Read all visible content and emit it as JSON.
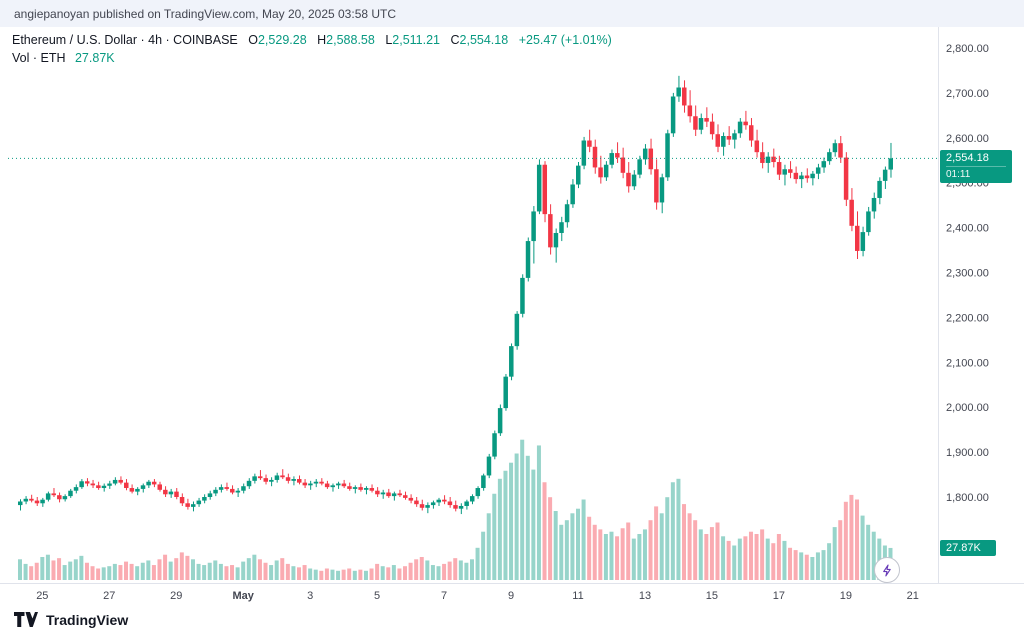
{
  "attribution": {
    "text": "angiepanoyan published on TradingView.com, May 20, 2025 03:58 UTC"
  },
  "legend": {
    "symbol_title": "Ethereum / U.S. Dollar · 4h · COINBASE",
    "o_label": "O",
    "o_value": "2,529.28",
    "h_label": "H",
    "h_value": "2,588.58",
    "l_label": "L",
    "l_value": "2,511.21",
    "c_label": "C",
    "c_value": "2,554.18",
    "change": "+25.47 (+1.01%)",
    "vol_title": "Vol · ETH",
    "vol_value": "27.87K"
  },
  "badges": {
    "last_price": "2,554.18",
    "countdown": "01:11",
    "volume": "27.87K"
  },
  "footer": {
    "brand": "TradingView"
  },
  "chart_data": {
    "type": "candlestick",
    "title": "Ethereum / U.S. Dollar",
    "exchange": "COINBASE",
    "interval": "4h",
    "last_price": 2554.18,
    "last_volume": 27.87,
    "price_axis": {
      "min": 1800,
      "max": 2800,
      "step": 100
    },
    "time_axis": [
      {
        "index": 4,
        "label": "25"
      },
      {
        "index": 16,
        "label": "27"
      },
      {
        "index": 28,
        "label": "29"
      },
      {
        "index": 40,
        "label": "May",
        "bold": true
      },
      {
        "index": 52,
        "label": "3"
      },
      {
        "index": 64,
        "label": "5"
      },
      {
        "index": 76,
        "label": "7"
      },
      {
        "index": 88,
        "label": "9"
      },
      {
        "index": 100,
        "label": "11"
      },
      {
        "index": 112,
        "label": "13"
      },
      {
        "index": 124,
        "label": "15"
      },
      {
        "index": 136,
        "label": "17"
      },
      {
        "index": 148,
        "label": "19"
      },
      {
        "index": 160,
        "label": "21"
      }
    ],
    "colors": {
      "up": "#089981",
      "down": "#f23645",
      "vol_up": "rgba(8,153,129,0.42)",
      "vol_down": "rgba(242,54,69,0.42)",
      "axis_text": "#434651",
      "axis_line": "#e0e3eb"
    },
    "candles_format": [
      "open",
      "high",
      "low",
      "close",
      "volume_k"
    ],
    "candles": [
      [
        1782,
        1795,
        1770,
        1790,
        18
      ],
      [
        1790,
        1802,
        1784,
        1796,
        14
      ],
      [
        1796,
        1805,
        1788,
        1792,
        12
      ],
      [
        1792,
        1800,
        1780,
        1786,
        15
      ],
      [
        1786,
        1798,
        1778,
        1794,
        20
      ],
      [
        1794,
        1812,
        1790,
        1808,
        22
      ],
      [
        1808,
        1820,
        1800,
        1804,
        17
      ],
      [
        1804,
        1810,
        1788,
        1795,
        19
      ],
      [
        1795,
        1806,
        1790,
        1802,
        13
      ],
      [
        1802,
        1818,
        1798,
        1814,
        16
      ],
      [
        1814,
        1828,
        1808,
        1822,
        18
      ],
      [
        1822,
        1840,
        1818,
        1835,
        21
      ],
      [
        1835,
        1842,
        1824,
        1830,
        15
      ],
      [
        1830,
        1838,
        1820,
        1826,
        12
      ],
      [
        1826,
        1834,
        1816,
        1820,
        10
      ],
      [
        1820,
        1830,
        1812,
        1825,
        11
      ],
      [
        1825,
        1836,
        1818,
        1830,
        12
      ],
      [
        1830,
        1844,
        1826,
        1838,
        14
      ],
      [
        1838,
        1846,
        1828,
        1832,
        13
      ],
      [
        1832,
        1840,
        1815,
        1820,
        16
      ],
      [
        1820,
        1828,
        1808,
        1812,
        14
      ],
      [
        1812,
        1822,
        1804,
        1818,
        12
      ],
      [
        1818,
        1830,
        1810,
        1826,
        15
      ],
      [
        1826,
        1838,
        1820,
        1834,
        17
      ],
      [
        1834,
        1840,
        1822,
        1828,
        13
      ],
      [
        1828,
        1834,
        1812,
        1816,
        18
      ],
      [
        1816,
        1824,
        1800,
        1806,
        22
      ],
      [
        1806,
        1818,
        1798,
        1812,
        16
      ],
      [
        1812,
        1820,
        1795,
        1800,
        19
      ],
      [
        1800,
        1808,
        1780,
        1786,
        24
      ],
      [
        1786,
        1796,
        1772,
        1778,
        21
      ],
      [
        1778,
        1790,
        1768,
        1784,
        18
      ],
      [
        1784,
        1798,
        1778,
        1792,
        14
      ],
      [
        1792,
        1806,
        1786,
        1800,
        13
      ],
      [
        1800,
        1814,
        1794,
        1808,
        15
      ],
      [
        1808,
        1822,
        1802,
        1816,
        17
      ],
      [
        1816,
        1828,
        1810,
        1822,
        14
      ],
      [
        1822,
        1832,
        1814,
        1818,
        12
      ],
      [
        1818,
        1826,
        1806,
        1810,
        13
      ],
      [
        1810,
        1820,
        1800,
        1814,
        11
      ],
      [
        1814,
        1830,
        1808,
        1824,
        16
      ],
      [
        1824,
        1842,
        1818,
        1836,
        19
      ],
      [
        1836,
        1852,
        1830,
        1846,
        22
      ],
      [
        1846,
        1860,
        1838,
        1842,
        18
      ],
      [
        1842,
        1850,
        1828,
        1834,
        15
      ],
      [
        1834,
        1844,
        1824,
        1838,
        13
      ],
      [
        1838,
        1854,
        1832,
        1848,
        17
      ],
      [
        1848,
        1862,
        1840,
        1844,
        19
      ],
      [
        1844,
        1852,
        1830,
        1836,
        14
      ],
      [
        1836,
        1846,
        1826,
        1840,
        12
      ],
      [
        1840,
        1848,
        1828,
        1832,
        11
      ],
      [
        1832,
        1840,
        1820,
        1826,
        13
      ],
      [
        1826,
        1836,
        1816,
        1830,
        10
      ],
      [
        1830,
        1840,
        1822,
        1834,
        9
      ],
      [
        1834,
        1842,
        1826,
        1830,
        8
      ],
      [
        1830,
        1836,
        1818,
        1822,
        10
      ],
      [
        1822,
        1830,
        1812,
        1826,
        9
      ],
      [
        1826,
        1834,
        1818,
        1830,
        8
      ],
      [
        1830,
        1838,
        1820,
        1824,
        9
      ],
      [
        1824,
        1832,
        1814,
        1818,
        10
      ],
      [
        1818,
        1826,
        1808,
        1822,
        8
      ],
      [
        1822,
        1830,
        1812,
        1816,
        9
      ],
      [
        1816,
        1824,
        1806,
        1820,
        8
      ],
      [
        1820,
        1828,
        1810,
        1814,
        10
      ],
      [
        1814,
        1822,
        1800,
        1806,
        14
      ],
      [
        1806,
        1816,
        1796,
        1810,
        12
      ],
      [
        1810,
        1818,
        1798,
        1802,
        11
      ],
      [
        1802,
        1812,
        1792,
        1808,
        13
      ],
      [
        1808,
        1816,
        1800,
        1804,
        10
      ],
      [
        1804,
        1812,
        1794,
        1798,
        12
      ],
      [
        1798,
        1806,
        1786,
        1792,
        15
      ],
      [
        1792,
        1800,
        1778,
        1784,
        18
      ],
      [
        1784,
        1794,
        1770,
        1776,
        20
      ],
      [
        1776,
        1788,
        1764,
        1782,
        17
      ],
      [
        1782,
        1792,
        1774,
        1788,
        13
      ],
      [
        1788,
        1798,
        1780,
        1794,
        12
      ],
      [
        1794,
        1804,
        1784,
        1790,
        14
      ],
      [
        1790,
        1800,
        1776,
        1782,
        16
      ],
      [
        1782,
        1792,
        1768,
        1774,
        19
      ],
      [
        1774,
        1786,
        1762,
        1780,
        17
      ],
      [
        1780,
        1794,
        1772,
        1790,
        15
      ],
      [
        1790,
        1806,
        1784,
        1802,
        18
      ],
      [
        1802,
        1824,
        1796,
        1820,
        28
      ],
      [
        1820,
        1852,
        1814,
        1848,
        42
      ],
      [
        1848,
        1896,
        1842,
        1890,
        58
      ],
      [
        1890,
        1948,
        1884,
        1942,
        75
      ],
      [
        1942,
        2006,
        1936,
        1998,
        88
      ],
      [
        1998,
        2074,
        1992,
        2068,
        95
      ],
      [
        2068,
        2142,
        2060,
        2136,
        102
      ],
      [
        2136,
        2214,
        2128,
        2208,
        110
      ],
      [
        2208,
        2296,
        2200,
        2288,
        122
      ],
      [
        2288,
        2378,
        2280,
        2370,
        108
      ],
      [
        2370,
        2448,
        2320,
        2436,
        96
      ],
      [
        2436,
        2552,
        2430,
        2540,
        117
      ],
      [
        2540,
        2548,
        2412,
        2430,
        85
      ],
      [
        2430,
        2452,
        2340,
        2356,
        72
      ],
      [
        2356,
        2398,
        2322,
        2388,
        60
      ],
      [
        2388,
        2424,
        2370,
        2412,
        48
      ],
      [
        2412,
        2462,
        2400,
        2452,
        52
      ],
      [
        2452,
        2508,
        2444,
        2496,
        58
      ],
      [
        2496,
        2546,
        2488,
        2538,
        62
      ],
      [
        2538,
        2602,
        2530,
        2594,
        70
      ],
      [
        2594,
        2618,
        2568,
        2580,
        55
      ],
      [
        2580,
        2596,
        2520,
        2534,
        48
      ],
      [
        2534,
        2560,
        2498,
        2512,
        44
      ],
      [
        2512,
        2548,
        2504,
        2540,
        40
      ],
      [
        2540,
        2574,
        2532,
        2566,
        42
      ],
      [
        2566,
        2590,
        2544,
        2556,
        38
      ],
      [
        2556,
        2578,
        2510,
        2522,
        45
      ],
      [
        2522,
        2546,
        2478,
        2492,
        50
      ],
      [
        2492,
        2528,
        2484,
        2518,
        36
      ],
      [
        2518,
        2560,
        2510,
        2552,
        40
      ],
      [
        2552,
        2586,
        2540,
        2576,
        44
      ],
      [
        2576,
        2598,
        2518,
        2530,
        52
      ],
      [
        2530,
        2552,
        2440,
        2456,
        64
      ],
      [
        2456,
        2520,
        2432,
        2512,
        58
      ],
      [
        2512,
        2618,
        2504,
        2610,
        72
      ],
      [
        2610,
        2700,
        2602,
        2692,
        85
      ],
      [
        2692,
        2738,
        2680,
        2712,
        88
      ],
      [
        2712,
        2728,
        2656,
        2672,
        66
      ],
      [
        2672,
        2706,
        2634,
        2648,
        58
      ],
      [
        2648,
        2672,
        2604,
        2618,
        52
      ],
      [
        2618,
        2654,
        2608,
        2644,
        44
      ],
      [
        2644,
        2668,
        2624,
        2636,
        40
      ],
      [
        2636,
        2654,
        2596,
        2608,
        46
      ],
      [
        2608,
        2630,
        2568,
        2580,
        50
      ],
      [
        2580,
        2612,
        2560,
        2604,
        38
      ],
      [
        2604,
        2626,
        2584,
        2596,
        34
      ],
      [
        2596,
        2618,
        2576,
        2610,
        30
      ],
      [
        2610,
        2644,
        2600,
        2636,
        36
      ],
      [
        2636,
        2660,
        2618,
        2628,
        38
      ],
      [
        2628,
        2644,
        2580,
        2594,
        42
      ],
      [
        2594,
        2618,
        2556,
        2568,
        40
      ],
      [
        2568,
        2590,
        2532,
        2544,
        44
      ],
      [
        2544,
        2568,
        2522,
        2558,
        36
      ],
      [
        2558,
        2576,
        2534,
        2546,
        32
      ],
      [
        2546,
        2560,
        2506,
        2518,
        40
      ],
      [
        2518,
        2540,
        2494,
        2530,
        34
      ],
      [
        2530,
        2548,
        2510,
        2522,
        28
      ],
      [
        2522,
        2536,
        2498,
        2508,
        26
      ],
      [
        2508,
        2524,
        2488,
        2516,
        24
      ],
      [
        2516,
        2532,
        2500,
        2510,
        22
      ],
      [
        2510,
        2526,
        2494,
        2520,
        20
      ],
      [
        2520,
        2542,
        2508,
        2534,
        24
      ],
      [
        2534,
        2556,
        2522,
        2548,
        26
      ],
      [
        2548,
        2576,
        2540,
        2568,
        32
      ],
      [
        2568,
        2596,
        2558,
        2588,
        46
      ],
      [
        2588,
        2604,
        2544,
        2556,
        52
      ],
      [
        2556,
        2568,
        2448,
        2462,
        68
      ],
      [
        2462,
        2488,
        2392,
        2404,
        74
      ],
      [
        2404,
        2436,
        2330,
        2348,
        70
      ],
      [
        2348,
        2402,
        2336,
        2390,
        56
      ],
      [
        2390,
        2446,
        2382,
        2436,
        48
      ],
      [
        2436,
        2478,
        2420,
        2466,
        42
      ],
      [
        2466,
        2512,
        2452,
        2504,
        36
      ],
      [
        2504,
        2536,
        2486,
        2529,
        30
      ],
      [
        2529.28,
        2588.58,
        2511.21,
        2554.18,
        27.87
      ]
    ]
  }
}
